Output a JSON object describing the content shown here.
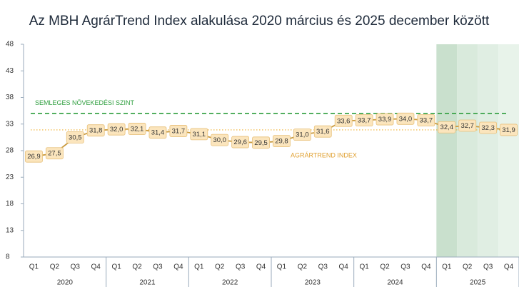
{
  "chart_data": {
    "type": "line",
    "title": "Az MBH AgrárTrend Index alakulása 2020 március és 2025 december között",
    "categories": [
      "Q1",
      "Q2",
      "Q3",
      "Q4",
      "Q1",
      "Q2",
      "Q3",
      "Q4",
      "Q1",
      "Q2",
      "Q3",
      "Q4",
      "Q1",
      "Q2",
      "Q3",
      "Q4",
      "Q1",
      "Q2",
      "Q3",
      "Q4",
      "Q1",
      "Q2",
      "Q3",
      "Q4"
    ],
    "groups": [
      {
        "label": "2020",
        "size": 4
      },
      {
        "label": "2021",
        "size": 4
      },
      {
        "label": "2022",
        "size": 4
      },
      {
        "label": "2023",
        "size": 4
      },
      {
        "label": "2024",
        "size": 4
      },
      {
        "label": "2025",
        "size": 4,
        "shading": [
          "#c9e0cd",
          "#d9eadc",
          "#e0eee3",
          "#e8f3ea"
        ]
      }
    ],
    "series": [
      {
        "name": "AGRÁRTREND INDEX",
        "color": "#c99a3e",
        "label_color": "#e0a030",
        "values": [
          26.9,
          27.5,
          30.5,
          31.8,
          32.0,
          32.1,
          31.4,
          31.7,
          31.1,
          30.0,
          29.6,
          29.5,
          29.8,
          31.0,
          31.6,
          33.6,
          33.7,
          33.9,
          34.0,
          33.7,
          32.4,
          32.7,
          32.3,
          31.9
        ],
        "value_labels": [
          "26,9",
          "27,5",
          "30,5",
          "31,8",
          "32,0",
          "32,1",
          "31,4",
          "31,7",
          "31,1",
          "30,0",
          "29,6",
          "29,5",
          "29,8",
          "31,0",
          "31,6",
          "33,6",
          "33,7",
          "33,9",
          "34,0",
          "33,7",
          "32,4",
          "32,7",
          "32,3",
          "31,9"
        ]
      }
    ],
    "reference_lines": [
      {
        "value": 35,
        "label": "SEMLEGES NÖVEKEDÉSI SZINT",
        "color": "#2e9e3e",
        "style": "dashed"
      },
      {
        "value": 31.9,
        "color": "#f0b030",
        "style": "dotted"
      }
    ],
    "ylim": [
      8,
      48
    ],
    "yticks": [
      8,
      13,
      18,
      23,
      28,
      33,
      38,
      43,
      48
    ]
  }
}
